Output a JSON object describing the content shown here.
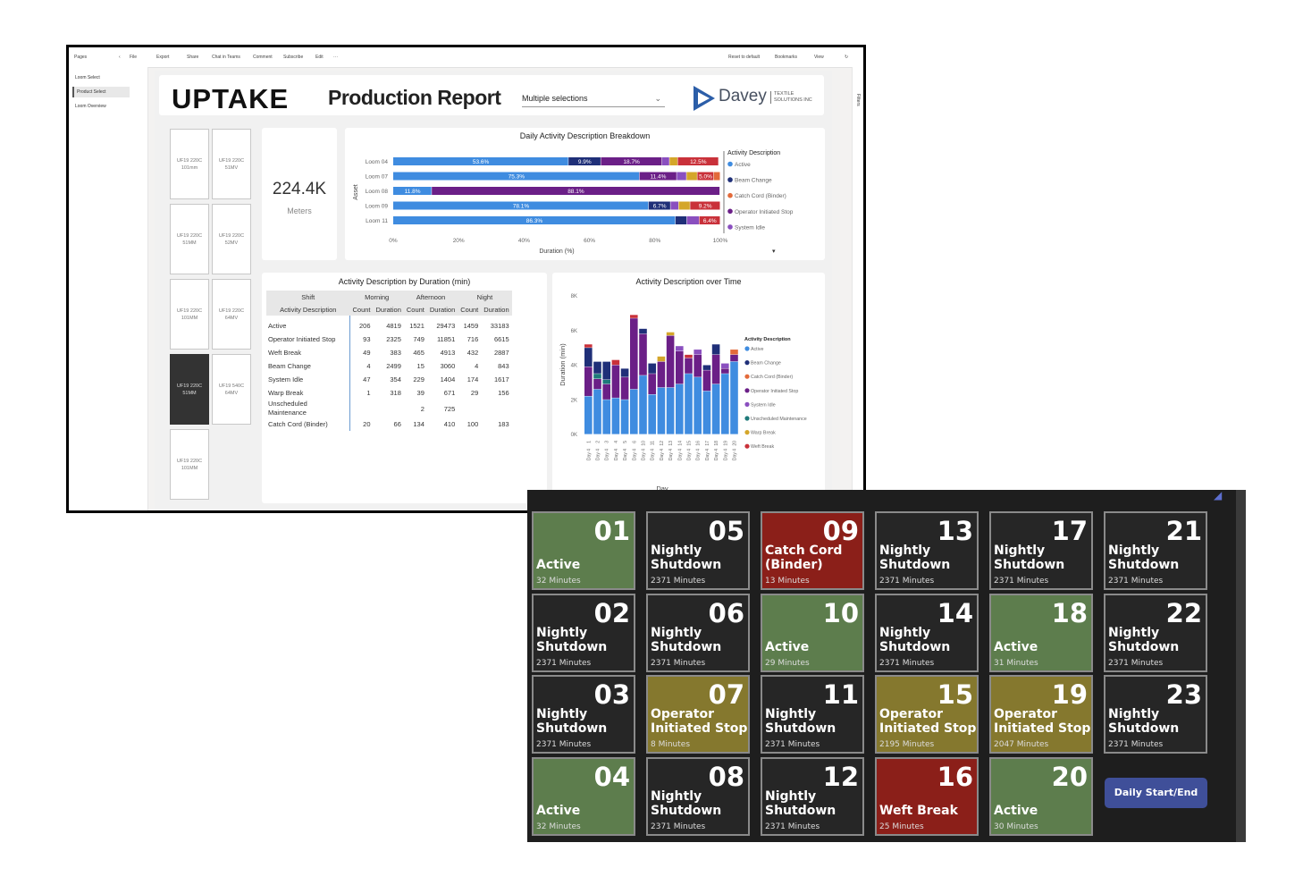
{
  "toolbar": {
    "items": [
      "File",
      "Export",
      "Share",
      "Chat in Teams",
      "Comment",
      "Subscribe",
      "Edit"
    ],
    "right_items": [
      "Reset to default",
      "Bookmarks",
      "View"
    ],
    "pages_label": "Pages",
    "filters_label": "Filters"
  },
  "pages": [
    {
      "label": "Loom Select"
    },
    {
      "label": "Product Select"
    },
    {
      "label": "Loom Overview"
    }
  ],
  "header": {
    "logo": "UPTAKE",
    "title": "Production Report",
    "slicer_value": "Multiple selections",
    "brand_name": "Davey",
    "brand_sub_1": "TEXTILE",
    "brand_sub_2": "SOLUTIONS INC"
  },
  "looms": [
    {
      "label": "UF19 220C\n101mm"
    },
    {
      "label": "UF19 220C\n51MV"
    },
    {
      "label": "UF19 220C\n51MM"
    },
    {
      "label": "UF19 220C\n52MV"
    },
    {
      "label": "UF19 220C\n101MM"
    },
    {
      "label": "UF19 220C\n64MV"
    },
    {
      "label": "UF19 220C\n51MM"
    },
    {
      "label": "UF19 540C\n64MV"
    },
    {
      "label": "UF19 220C\n101MM"
    }
  ],
  "kpi": {
    "value": "224.4K",
    "label": "Meters"
  },
  "breakdown_chart": {
    "title": "Daily Activity Description Breakdown",
    "ylabel": "Asset",
    "xlabel": "Duration (%)",
    "legend_title": "Activity Description",
    "legend": [
      {
        "name": "Active",
        "color": "#3f8ce0"
      },
      {
        "name": "Beam Change",
        "color": "#1f2f78"
      },
      {
        "name": "Catch Cord (Binder)",
        "color": "#e36a3a"
      },
      {
        "name": "Operator Initiated Stop",
        "color": "#6b1f87"
      },
      {
        "name": "System Idle",
        "color": "#8a4fbf"
      }
    ]
  },
  "chart_data": [
    {
      "type": "bar",
      "orientation": "horizontal",
      "stacked": true,
      "title": "Daily Activity Description Breakdown",
      "xlabel": "Duration (%)",
      "ylabel": "Asset",
      "xlim": [
        0,
        100
      ],
      "xticks": [
        "0%",
        "20%",
        "40%",
        "60%",
        "80%",
        "100%"
      ],
      "categories": [
        "Loom 04",
        "Loom 07",
        "Loom 08",
        "Loom 09",
        "Loom 11"
      ],
      "segments": [
        [
          {
            "v": 53.6,
            "c": "#3f8ce0",
            "label": "53.6%"
          },
          {
            "v": 9.9,
            "c": "#1f2f78",
            "label": "9.9%"
          },
          {
            "v": 18.7,
            "c": "#6b1f87",
            "label": "18.7%"
          },
          {
            "v": 2.3,
            "c": "#8a4fbf"
          },
          {
            "v": 2.5,
            "c": "#d4a62a"
          },
          {
            "v": 12.5,
            "c": "#c9313a",
            "label": "12.5%"
          }
        ],
        [
          {
            "v": 75.3,
            "c": "#3f8ce0",
            "label": "75.3%"
          },
          {
            "v": 11.4,
            "c": "#6b1f87",
            "label": "11.4%"
          },
          {
            "v": 3.0,
            "c": "#8a4fbf"
          },
          {
            "v": 3.3,
            "c": "#d4a62a"
          },
          {
            "v": 5.0,
            "c": "#c9313a",
            "label": "5.0%"
          },
          {
            "v": 2.0,
            "c": "#e36a3a"
          }
        ],
        [
          {
            "v": 11.8,
            "c": "#3f8ce0",
            "label": "11.8%"
          },
          {
            "v": 88.1,
            "c": "#6b1f87",
            "label": "88.1%"
          }
        ],
        [
          {
            "v": 78.1,
            "c": "#3f8ce0",
            "label": "78.1%"
          },
          {
            "v": 6.7,
            "c": "#1f2f78",
            "label": "6.7%"
          },
          {
            "v": 2.5,
            "c": "#8a4fbf"
          },
          {
            "v": 3.5,
            "c": "#d4a62a"
          },
          {
            "v": 9.2,
            "c": "#c9313a",
            "label": "9.2%"
          }
        ],
        [
          {
            "v": 86.3,
            "c": "#3f8ce0",
            "label": "86.3%"
          },
          {
            "v": 3.5,
            "c": "#1f2f78"
          },
          {
            "v": 3.8,
            "c": "#8a4fbf"
          },
          {
            "v": 6.4,
            "c": "#c9313a",
            "label": "6.4%"
          }
        ]
      ]
    },
    {
      "type": "bar",
      "stacked": true,
      "title": "Activity Description over Time",
      "xlabel": "Day",
      "ylabel": "Duration (min)",
      "ylim": [
        0,
        8000
      ],
      "yticks": [
        "0K",
        "2K",
        "4K",
        "6K",
        "8K"
      ],
      "categories": [
        "Day 4",
        "Day 4",
        "Day 4",
        "Day 4",
        "Day 4",
        "Day 4",
        "Day 4",
        "Day 4",
        "Day 4",
        "Day 4",
        "Day 4",
        "Day 4",
        "Day 4",
        "Day 4",
        "Day 4",
        "Day 4",
        "Day 4"
      ],
      "tick_numbers": [
        "1",
        "2",
        "3",
        "4",
        "5",
        "6",
        "10",
        "11",
        "12",
        "13",
        "14",
        "15",
        "16",
        "17",
        "18",
        "19",
        "20"
      ],
      "legend_title": "Activity Description",
      "legend": [
        {
          "name": "Active",
          "color": "#3f8ce0"
        },
        {
          "name": "Beam Change",
          "color": "#1f2f78"
        },
        {
          "name": "Catch Cord (Binder)",
          "color": "#e36a3a"
        },
        {
          "name": "Operator Initiated Stop",
          "color": "#6b1f87"
        },
        {
          "name": "System Idle",
          "color": "#8a4fbf"
        },
        {
          "name": "Unscheduled Maintenance",
          "color": "#1f7a7a"
        },
        {
          "name": "Warp Break",
          "color": "#d4a62a"
        },
        {
          "name": "Weft Break",
          "color": "#c9313a"
        }
      ],
      "stacks": [
        [
          {
            "v": 2200,
            "c": "#3f8ce0"
          },
          {
            "v": 1700,
            "c": "#6b1f87"
          },
          {
            "v": 1100,
            "c": "#1f2f78"
          },
          {
            "v": 200,
            "c": "#c9313a"
          }
        ],
        [
          {
            "v": 2600,
            "c": "#3f8ce0"
          },
          {
            "v": 600,
            "c": "#6b1f87"
          },
          {
            "v": 300,
            "c": "#1f7a7a"
          },
          {
            "v": 700,
            "c": "#1f2f78"
          }
        ],
        [
          {
            "v": 2000,
            "c": "#3f8ce0"
          },
          {
            "v": 900,
            "c": "#6b1f87"
          },
          {
            "v": 250,
            "c": "#1f7a7a"
          },
          {
            "v": 1050,
            "c": "#1f2f78"
          }
        ],
        [
          {
            "v": 2100,
            "c": "#3f8ce0"
          },
          {
            "v": 1900,
            "c": "#6b1f87"
          },
          {
            "v": 300,
            "c": "#c9313a"
          }
        ],
        [
          {
            "v": 2000,
            "c": "#3f8ce0"
          },
          {
            "v": 1300,
            "c": "#6b1f87"
          },
          {
            "v": 500,
            "c": "#1f2f78"
          }
        ],
        [
          {
            "v": 2600,
            "c": "#3f8ce0"
          },
          {
            "v": 4100,
            "c": "#6b1f87"
          },
          {
            "v": 200,
            "c": "#c9313a"
          }
        ],
        [
          {
            "v": 3400,
            "c": "#3f8ce0"
          },
          {
            "v": 2400,
            "c": "#6b1f87"
          },
          {
            "v": 300,
            "c": "#1f2f78"
          }
        ],
        [
          {
            "v": 2300,
            "c": "#3f8ce0"
          },
          {
            "v": 1200,
            "c": "#6b1f87"
          },
          {
            "v": 600,
            "c": "#1f2f78"
          }
        ],
        [
          {
            "v": 2700,
            "c": "#3f8ce0"
          },
          {
            "v": 1500,
            "c": "#6b1f87"
          },
          {
            "v": 300,
            "c": "#d4a62a"
          }
        ],
        [
          {
            "v": 2700,
            "c": "#3f8ce0"
          },
          {
            "v": 3000,
            "c": "#6b1f87"
          },
          {
            "v": 200,
            "c": "#d4a62a"
          }
        ],
        [
          {
            "v": 2900,
            "c": "#3f8ce0"
          },
          {
            "v": 1900,
            "c": "#6b1f87"
          },
          {
            "v": 300,
            "c": "#8a4fbf"
          }
        ],
        [
          {
            "v": 3500,
            "c": "#3f8ce0"
          },
          {
            "v": 900,
            "c": "#6b1f87"
          },
          {
            "v": 200,
            "c": "#c9313a"
          }
        ],
        [
          {
            "v": 3300,
            "c": "#3f8ce0"
          },
          {
            "v": 1300,
            "c": "#6b1f87"
          },
          {
            "v": 300,
            "c": "#8a4fbf"
          }
        ],
        [
          {
            "v": 2500,
            "c": "#3f8ce0"
          },
          {
            "v": 1200,
            "c": "#6b1f87"
          },
          {
            "v": 300,
            "c": "#1f2f78"
          }
        ],
        [
          {
            "v": 2900,
            "c": "#3f8ce0"
          },
          {
            "v": 1700,
            "c": "#6b1f87"
          },
          {
            "v": 600,
            "c": "#1f2f78"
          }
        ],
        [
          {
            "v": 3500,
            "c": "#3f8ce0"
          },
          {
            "v": 300,
            "c": "#6b1f87"
          },
          {
            "v": 300,
            "c": "#8a4fbf"
          }
        ],
        [
          {
            "v": 4200,
            "c": "#3f8ce0"
          },
          {
            "v": 400,
            "c": "#6b1f87"
          },
          {
            "v": 300,
            "c": "#e36a3a"
          }
        ]
      ]
    }
  ],
  "matrix": {
    "title": "Activity Description by Duration (min)",
    "shift_label": "Shift",
    "row_header": "Activity Description",
    "shifts": [
      "Morning",
      "Afternoon",
      "Night"
    ],
    "sub_headers": [
      "Count",
      "Duration"
    ],
    "rows": [
      {
        "label": "Active",
        "values": [
          "206",
          "4819",
          "1521",
          "29473",
          "1459",
          "33183"
        ]
      },
      {
        "label": "Operator Initiated Stop",
        "values": [
          "93",
          "2325",
          "749",
          "11851",
          "716",
          "6615"
        ]
      },
      {
        "label": "Weft Break",
        "values": [
          "49",
          "383",
          "465",
          "4913",
          "432",
          "2887"
        ]
      },
      {
        "label": "Beam Change",
        "values": [
          "4",
          "2499",
          "15",
          "3060",
          "4",
          "843"
        ]
      },
      {
        "label": "System Idle",
        "values": [
          "47",
          "354",
          "229",
          "1404",
          "174",
          "1617"
        ]
      },
      {
        "label": "Warp Break",
        "values": [
          "1",
          "318",
          "39",
          "671",
          "29",
          "156"
        ]
      },
      {
        "label": "Unscheduled Maintenance",
        "values": [
          "",
          "",
          "2",
          "725",
          "",
          ""
        ]
      },
      {
        "label": "Catch Cord (Binder)",
        "values": [
          "20",
          "66",
          "134",
          "410",
          "100",
          "183"
        ]
      }
    ]
  },
  "tiles": [
    {
      "num": "01",
      "status": "Active",
      "minutes": "32 Minutes",
      "state": "active"
    },
    {
      "num": "02",
      "status": "Nightly Shutdown",
      "minutes": "2371 Minutes",
      "state": "shutdown"
    },
    {
      "num": "03",
      "status": "Nightly Shutdown",
      "minutes": "2371 Minutes",
      "state": "shutdown"
    },
    {
      "num": "04",
      "status": "Active",
      "minutes": "32 Minutes",
      "state": "active"
    },
    {
      "num": "05",
      "status": "Nightly Shutdown",
      "minutes": "2371 Minutes",
      "state": "shutdown"
    },
    {
      "num": "06",
      "status": "Nightly Shutdown",
      "minutes": "2371 Minutes",
      "state": "shutdown"
    },
    {
      "num": "07",
      "status": "Operator Initiated Stop",
      "minutes": "8 Minutes",
      "state": "operator"
    },
    {
      "num": "08",
      "status": "Nightly Shutdown",
      "minutes": "2371 Minutes",
      "state": "shutdown"
    },
    {
      "num": "09",
      "status": "Catch Cord (Binder)",
      "minutes": "13 Minutes",
      "state": "catch"
    },
    {
      "num": "10",
      "status": "Active",
      "minutes": "29 Minutes",
      "state": "active"
    },
    {
      "num": "11",
      "status": "Nightly Shutdown",
      "minutes": "2371 Minutes",
      "state": "shutdown"
    },
    {
      "num": "12",
      "status": "Nightly Shutdown",
      "minutes": "2371 Minutes",
      "state": "shutdown"
    },
    {
      "num": "13",
      "status": "Nightly Shutdown",
      "minutes": "2371 Minutes",
      "state": "shutdown"
    },
    {
      "num": "14",
      "status": "Nightly Shutdown",
      "minutes": "2371 Minutes",
      "state": "shutdown"
    },
    {
      "num": "15",
      "status": "Operator Initiated Stop",
      "minutes": "2195 Minutes",
      "state": "operator"
    },
    {
      "num": "16",
      "status": "Weft Break",
      "minutes": "25 Minutes",
      "state": "weft"
    },
    {
      "num": "17",
      "status": "Nightly Shutdown",
      "minutes": "2371 Minutes",
      "state": "shutdown"
    },
    {
      "num": "18",
      "status": "Active",
      "minutes": "31 Minutes",
      "state": "active"
    },
    {
      "num": "19",
      "status": "Operator Initiated Stop",
      "minutes": "2047 Minutes",
      "state": "operator"
    },
    {
      "num": "20",
      "status": "Active",
      "minutes": "30 Minutes",
      "state": "active"
    },
    {
      "num": "21",
      "status": "Nightly Shutdown",
      "minutes": "2371 Minutes",
      "state": "shutdown"
    },
    {
      "num": "22",
      "status": "Nightly Shutdown",
      "minutes": "2371 Minutes",
      "state": "shutdown"
    },
    {
      "num": "23",
      "status": "Nightly Shutdown",
      "minutes": "2371 Minutes",
      "state": "shutdown"
    }
  ],
  "daily_button": "Daily Start/End"
}
